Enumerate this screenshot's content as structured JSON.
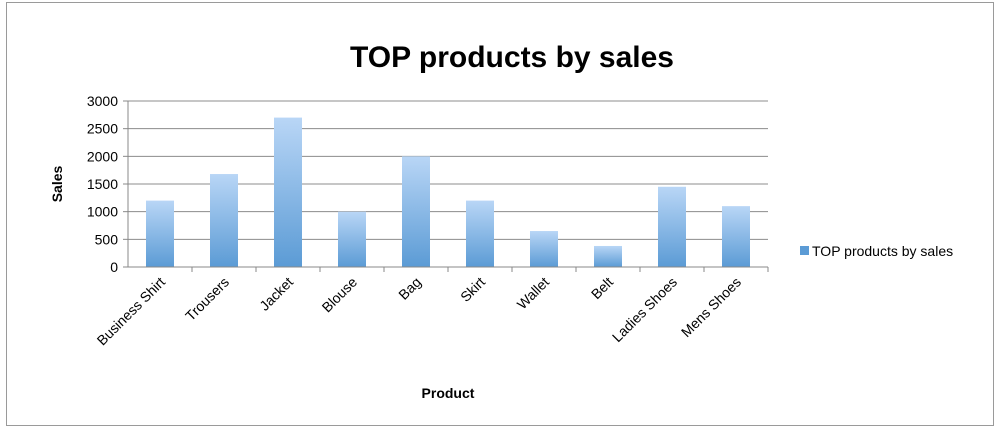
{
  "chart_data": {
    "type": "bar",
    "title": "TOP products by sales",
    "xlabel": "Product",
    "ylabel": "Sales",
    "categories": [
      "Business Shirt",
      "Trousers",
      "Jacket",
      "Blouse",
      "Bag",
      "Skirt",
      "Wallet",
      "Belt",
      "Ladies Shoes",
      "Mens Shoes"
    ],
    "series": [
      {
        "name": "TOP products by sales",
        "values": [
          1200,
          1680,
          2700,
          1000,
          2000,
          1200,
          650,
          380,
          1450,
          1100
        ]
      }
    ],
    "ylim": [
      0,
      3000
    ],
    "yticks": [
      0,
      500,
      1000,
      1500,
      2000,
      2500,
      3000
    ],
    "grid": true,
    "legend_position": "right",
    "bar_color": "#5b9bd5"
  }
}
